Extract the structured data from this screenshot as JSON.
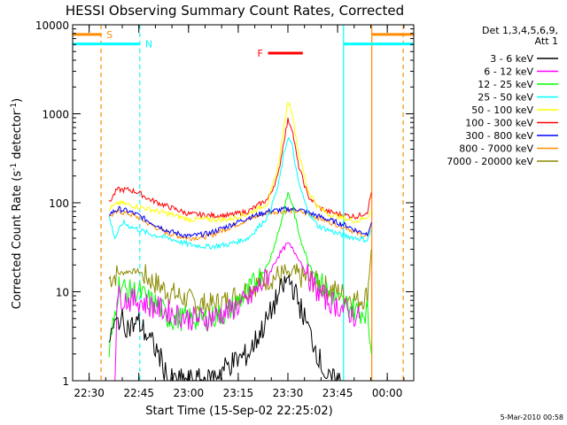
{
  "chart_data": {
    "type": "line",
    "title": "HESSI Observing Summary Count Rates, Corrected",
    "xlabel": "Start Time (15-Sep-02 22:25:02)",
    "ylabel_main": "Corrected Count Rate (s",
    "ylabel_sup1": "-1",
    "ylabel_mid": " detector",
    "ylabel_sup2": "-1",
    "ylabel_end": ")",
    "ylog": true,
    "xlim": [
      22.417,
      24.133
    ],
    "ylim": [
      1,
      10000
    ],
    "xticks": [
      {
        "v": 22.5,
        "label": "22:30"
      },
      {
        "v": 22.75,
        "label": "22:45"
      },
      {
        "v": 23.0,
        "label": "23:00"
      },
      {
        "v": 23.25,
        "label": "23:15"
      },
      {
        "v": 23.5,
        "label": "23:30"
      },
      {
        "v": 23.75,
        "label": "23:45"
      },
      {
        "v": 24.0,
        "label": "00:00"
      }
    ],
    "yticks": [
      {
        "v": 1,
        "label": "1"
      },
      {
        "v": 10,
        "label": "10"
      },
      {
        "v": 100,
        "label": "100"
      },
      {
        "v": 1000,
        "label": "1000"
      },
      {
        "v": 10000,
        "label": "10000"
      }
    ],
    "legend_header": [
      "Det 1,3,4,5,6,9,",
      "Att 1"
    ],
    "legend_placement": "right",
    "series": [
      {
        "name": "3 - 6 keV",
        "color": "#000000",
        "values": [
          [
            22.6,
            3
          ],
          [
            22.65,
            5
          ],
          [
            22.7,
            4
          ],
          [
            22.75,
            4.5
          ],
          [
            22.8,
            3
          ],
          [
            22.85,
            2
          ],
          [
            22.9,
            1
          ],
          [
            23.0,
            1
          ],
          [
            23.1,
            1
          ],
          [
            23.2,
            1.5
          ],
          [
            23.3,
            2
          ],
          [
            23.4,
            5
          ],
          [
            23.45,
            9
          ],
          [
            23.5,
            14
          ],
          [
            23.52,
            12
          ],
          [
            23.55,
            8
          ],
          [
            23.6,
            4
          ],
          [
            23.65,
            2
          ],
          [
            23.7,
            1
          ],
          [
            23.78,
            1
          ]
        ]
      },
      {
        "name": "6 - 12 keV",
        "color": "#ff00ff",
        "values": [
          [
            22.63,
            1
          ],
          [
            22.64,
            9
          ],
          [
            22.7,
            8
          ],
          [
            22.75,
            8
          ],
          [
            22.8,
            7
          ],
          [
            22.9,
            6
          ],
          [
            23.0,
            5
          ],
          [
            23.1,
            5
          ],
          [
            23.2,
            6
          ],
          [
            23.3,
            8
          ],
          [
            23.4,
            15
          ],
          [
            23.45,
            25
          ],
          [
            23.5,
            35
          ],
          [
            23.55,
            25
          ],
          [
            23.6,
            15
          ],
          [
            23.65,
            10
          ],
          [
            23.7,
            8
          ],
          [
            23.75,
            7
          ],
          [
            23.8,
            6
          ],
          [
            23.86,
            5
          ]
        ]
      },
      {
        "name": "12 - 25 keV",
        "color": "#00ff00",
        "values": [
          [
            22.6,
            2
          ],
          [
            22.62,
            4
          ],
          [
            22.65,
            12
          ],
          [
            22.7,
            10
          ],
          [
            22.75,
            10
          ],
          [
            22.8,
            8
          ],
          [
            22.85,
            7
          ],
          [
            22.9,
            5
          ],
          [
            23.0,
            5
          ],
          [
            23.1,
            5
          ],
          [
            23.2,
            6
          ],
          [
            23.3,
            10
          ],
          [
            23.4,
            20
          ],
          [
            23.45,
            45
          ],
          [
            23.48,
            80
          ],
          [
            23.5,
            130
          ],
          [
            23.52,
            100
          ],
          [
            23.55,
            50
          ],
          [
            23.6,
            22
          ],
          [
            23.65,
            14
          ],
          [
            23.7,
            10
          ],
          [
            23.75,
            8
          ],
          [
            23.8,
            7
          ],
          [
            23.85,
            6
          ],
          [
            23.9,
            6
          ],
          [
            23.92,
            2
          ]
        ]
      },
      {
        "name": "25 - 50 keV",
        "color": "#00ffff",
        "values": [
          [
            22.6,
            70
          ],
          [
            22.63,
            40
          ],
          [
            22.67,
            60
          ],
          [
            22.7,
            55
          ],
          [
            22.75,
            50
          ],
          [
            22.8,
            45
          ],
          [
            22.9,
            40
          ],
          [
            23.0,
            34
          ],
          [
            23.1,
            32
          ],
          [
            23.2,
            34
          ],
          [
            23.3,
            40
          ],
          [
            23.4,
            70
          ],
          [
            23.45,
            150
          ],
          [
            23.48,
            350
          ],
          [
            23.5,
            550
          ],
          [
            23.52,
            450
          ],
          [
            23.55,
            180
          ],
          [
            23.6,
            80
          ],
          [
            23.65,
            55
          ],
          [
            23.7,
            50
          ],
          [
            23.75,
            45
          ],
          [
            23.8,
            42
          ],
          [
            23.85,
            40
          ],
          [
            23.9,
            38
          ],
          [
            23.92,
            50
          ]
        ]
      },
      {
        "name": "50 - 100 keV",
        "color": "#ffff00",
        "values": [
          [
            22.6,
            85
          ],
          [
            22.65,
            100
          ],
          [
            22.7,
            95
          ],
          [
            22.75,
            90
          ],
          [
            22.8,
            85
          ],
          [
            22.9,
            75
          ],
          [
            23.0,
            65
          ],
          [
            23.1,
            65
          ],
          [
            23.2,
            65
          ],
          [
            23.3,
            75
          ],
          [
            23.4,
            100
          ],
          [
            23.45,
            250
          ],
          [
            23.48,
            700
          ],
          [
            23.5,
            1400
          ],
          [
            23.52,
            1100
          ],
          [
            23.55,
            400
          ],
          [
            23.6,
            140
          ],
          [
            23.65,
            90
          ],
          [
            23.7,
            75
          ],
          [
            23.75,
            70
          ],
          [
            23.8,
            65
          ],
          [
            23.85,
            62
          ],
          [
            23.9,
            70
          ],
          [
            23.92,
            80
          ]
        ]
      },
      {
        "name": "100 - 300 keV",
        "color": "#ff0000",
        "values": [
          [
            22.6,
            100
          ],
          [
            22.64,
            140
          ],
          [
            22.7,
            140
          ],
          [
            22.75,
            130
          ],
          [
            22.8,
            110
          ],
          [
            22.9,
            90
          ],
          [
            23.0,
            75
          ],
          [
            23.1,
            72
          ],
          [
            23.2,
            72
          ],
          [
            23.3,
            80
          ],
          [
            23.4,
            110
          ],
          [
            23.45,
            200
          ],
          [
            23.48,
            500
          ],
          [
            23.5,
            850
          ],
          [
            23.52,
            700
          ],
          [
            23.55,
            280
          ],
          [
            23.6,
            120
          ],
          [
            23.65,
            90
          ],
          [
            23.7,
            80
          ],
          [
            23.75,
            75
          ],
          [
            23.8,
            72
          ],
          [
            23.85,
            70
          ],
          [
            23.9,
            80
          ],
          [
            23.92,
            130
          ]
        ]
      },
      {
        "name": "300 - 800 keV",
        "color": "#0000ff",
        "values": [
          [
            22.6,
            75
          ],
          [
            22.65,
            85
          ],
          [
            22.7,
            80
          ],
          [
            22.75,
            72
          ],
          [
            22.8,
            62
          ],
          [
            22.9,
            48
          ],
          [
            23.0,
            42
          ],
          [
            23.1,
            45
          ],
          [
            23.2,
            55
          ],
          [
            23.3,
            68
          ],
          [
            23.4,
            80
          ],
          [
            23.5,
            85
          ],
          [
            23.55,
            85
          ],
          [
            23.6,
            78
          ],
          [
            23.7,
            65
          ],
          [
            23.8,
            55
          ],
          [
            23.85,
            48
          ],
          [
            23.9,
            45
          ],
          [
            23.92,
            60
          ]
        ]
      },
      {
        "name": "800 - 7000 keV",
        "color": "#ff8c00",
        "values": [
          [
            22.6,
            70
          ],
          [
            22.65,
            80
          ],
          [
            22.7,
            75
          ],
          [
            22.75,
            68
          ],
          [
            22.8,
            58
          ],
          [
            22.9,
            45
          ],
          [
            23.0,
            40
          ],
          [
            23.1,
            42
          ],
          [
            23.2,
            52
          ],
          [
            23.3,
            65
          ],
          [
            23.4,
            78
          ],
          [
            23.5,
            82
          ],
          [
            23.55,
            80
          ],
          [
            23.6,
            75
          ],
          [
            23.7,
            62
          ],
          [
            23.8,
            52
          ],
          [
            23.85,
            45
          ],
          [
            23.9,
            42
          ],
          [
            23.92,
            55
          ]
        ]
      },
      {
        "name": "7000 - 20000 keV",
        "color": "#8b8b00",
        "values": [
          [
            22.6,
            14
          ],
          [
            22.65,
            16
          ],
          [
            22.7,
            17
          ],
          [
            22.75,
            17
          ],
          [
            22.8,
            14
          ],
          [
            22.9,
            10
          ],
          [
            23.0,
            8
          ],
          [
            23.1,
            7
          ],
          [
            23.2,
            8
          ],
          [
            23.3,
            11
          ],
          [
            23.4,
            14
          ],
          [
            23.5,
            16
          ],
          [
            23.55,
            15
          ],
          [
            23.6,
            14
          ],
          [
            23.7,
            11
          ],
          [
            23.8,
            9
          ],
          [
            23.85,
            8
          ],
          [
            23.9,
            9
          ],
          [
            23.92,
            30
          ]
        ]
      }
    ],
    "vertical_lines": [
      {
        "x": 22.56,
        "color": "#ff8c00",
        "dash": true
      },
      {
        "x": 22.755,
        "color": "#00ffff",
        "dash": true
      },
      {
        "x": 23.78,
        "color": "#00ffff",
        "dash": false
      },
      {
        "x": 23.922,
        "color": "#ff8c00",
        "dash": false
      },
      {
        "x": 24.08,
        "color": "#ff8c00",
        "dash": true
      }
    ],
    "flag_bars": [
      {
        "label": "S",
        "color": "#ff8c00",
        "x0": 22.417,
        "x1": 22.56,
        "y": 7800
      },
      {
        "label": "N",
        "color": "#00ffff",
        "x0": 22.417,
        "x1": 22.755,
        "y": 6100
      },
      {
        "label": "F",
        "color": "#ff0000",
        "x0": 23.4,
        "x1": 23.575,
        "y": 4800
      },
      {
        "label": "",
        "color": "#00ffff",
        "x0": 23.78,
        "x1": 24.133,
        "y": 6100
      },
      {
        "label": "",
        "color": "#ff8c00",
        "x0": 23.922,
        "x1": 24.133,
        "y": 7800
      }
    ]
  },
  "footer": {
    "timestamp": "5-Mar-2010 00:58"
  }
}
